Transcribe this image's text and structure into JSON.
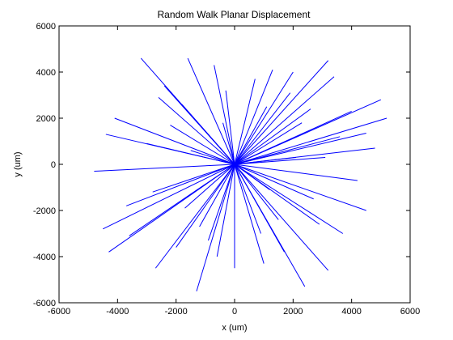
{
  "chart_data": {
    "type": "line",
    "title": "Random Walk Planar Displacement",
    "xlabel": "x (um)",
    "ylabel": "y (um)",
    "xlim": [
      -6000,
      6000
    ],
    "ylim": [
      -6000,
      6000
    ],
    "xticks": [
      -6000,
      -4000,
      -2000,
      0,
      2000,
      4000,
      6000
    ],
    "yticks": [
      -6000,
      -4000,
      -2000,
      0,
      2000,
      4000,
      6000
    ],
    "grid": false,
    "legend": "none",
    "line_color": "#0000ff",
    "series": [
      {
        "values": [
          [
            0,
            0,
            4500,
            1350
          ],
          [
            0,
            0,
            3200,
            4500
          ],
          [
            0,
            0,
            1300,
            4100
          ],
          [
            0,
            0,
            -1600,
            4600
          ],
          [
            0,
            0,
            -3200,
            4600
          ],
          [
            0,
            0,
            -4400,
            1300
          ],
          [
            0,
            0,
            -4500,
            -2800
          ],
          [
            0,
            0,
            -4300,
            -3800
          ],
          [
            0,
            0,
            -2700,
            -4500
          ],
          [
            0,
            0,
            -1300,
            -5500
          ],
          [
            0,
            0,
            0,
            -4500
          ],
          [
            0,
            0,
            1000,
            -4300
          ],
          [
            0,
            0,
            2400,
            -5300
          ],
          [
            0,
            0,
            3200,
            -4600
          ],
          [
            0,
            0,
            4500,
            -2000
          ],
          [
            0,
            0,
            5000,
            2800
          ],
          [
            0,
            0,
            5200,
            2000
          ],
          [
            0,
            0,
            4800,
            700
          ],
          [
            0,
            0,
            3400,
            3800
          ],
          [
            0,
            0,
            2000,
            4000
          ],
          [
            0,
            0,
            -700,
            4300
          ],
          [
            0,
            0,
            -2400,
            3400
          ],
          [
            0,
            0,
            -4100,
            2000
          ],
          [
            0,
            0,
            -4800,
            -300
          ],
          [
            0,
            0,
            -3600,
            -3100
          ],
          [
            0,
            0,
            -2000,
            -3600
          ],
          [
            0,
            0,
            -600,
            -4000
          ],
          [
            0,
            0,
            1700,
            -3800
          ],
          [
            0,
            0,
            3700,
            -3000
          ],
          [
            0,
            0,
            4200,
            -700
          ],
          [
            0,
            0,
            2600,
            2400
          ],
          [
            0,
            0,
            -1800,
            2600
          ],
          [
            0,
            0,
            -2800,
            -1200
          ],
          [
            0,
            0,
            1500,
            -2400
          ],
          [
            0,
            0,
            3100,
            300
          ],
          [
            0,
            0,
            -300,
            3200
          ],
          [
            0,
            0,
            2300,
            1800
          ],
          [
            0,
            0,
            -3000,
            900
          ],
          [
            0,
            0,
            -1200,
            -2700
          ],
          [
            0,
            0,
            2700,
            -1500
          ],
          [
            0,
            0,
            1100,
            2500
          ],
          [
            0,
            0,
            -2200,
            1700
          ],
          [
            0,
            0,
            -1700,
            -1900
          ],
          [
            0,
            0,
            900,
            -3000
          ],
          [
            0,
            0,
            3600,
            1200
          ],
          [
            0,
            0,
            700,
            3700
          ],
          [
            0,
            0,
            -3700,
            -1800
          ],
          [
            0,
            0,
            1900,
            3100
          ],
          [
            0,
            0,
            -900,
            -3300
          ],
          [
            0,
            0,
            2900,
            -2600
          ],
          [
            0,
            0,
            -2600,
            2900
          ],
          [
            0,
            0,
            4000,
            2300
          ],
          [
            0,
            0,
            -400,
            1800
          ],
          [
            0,
            0,
            1200,
            -1100
          ],
          [
            0,
            0,
            -1500,
            600
          ],
          [
            0,
            0,
            2100,
            300
          ]
        ]
      }
    ]
  }
}
